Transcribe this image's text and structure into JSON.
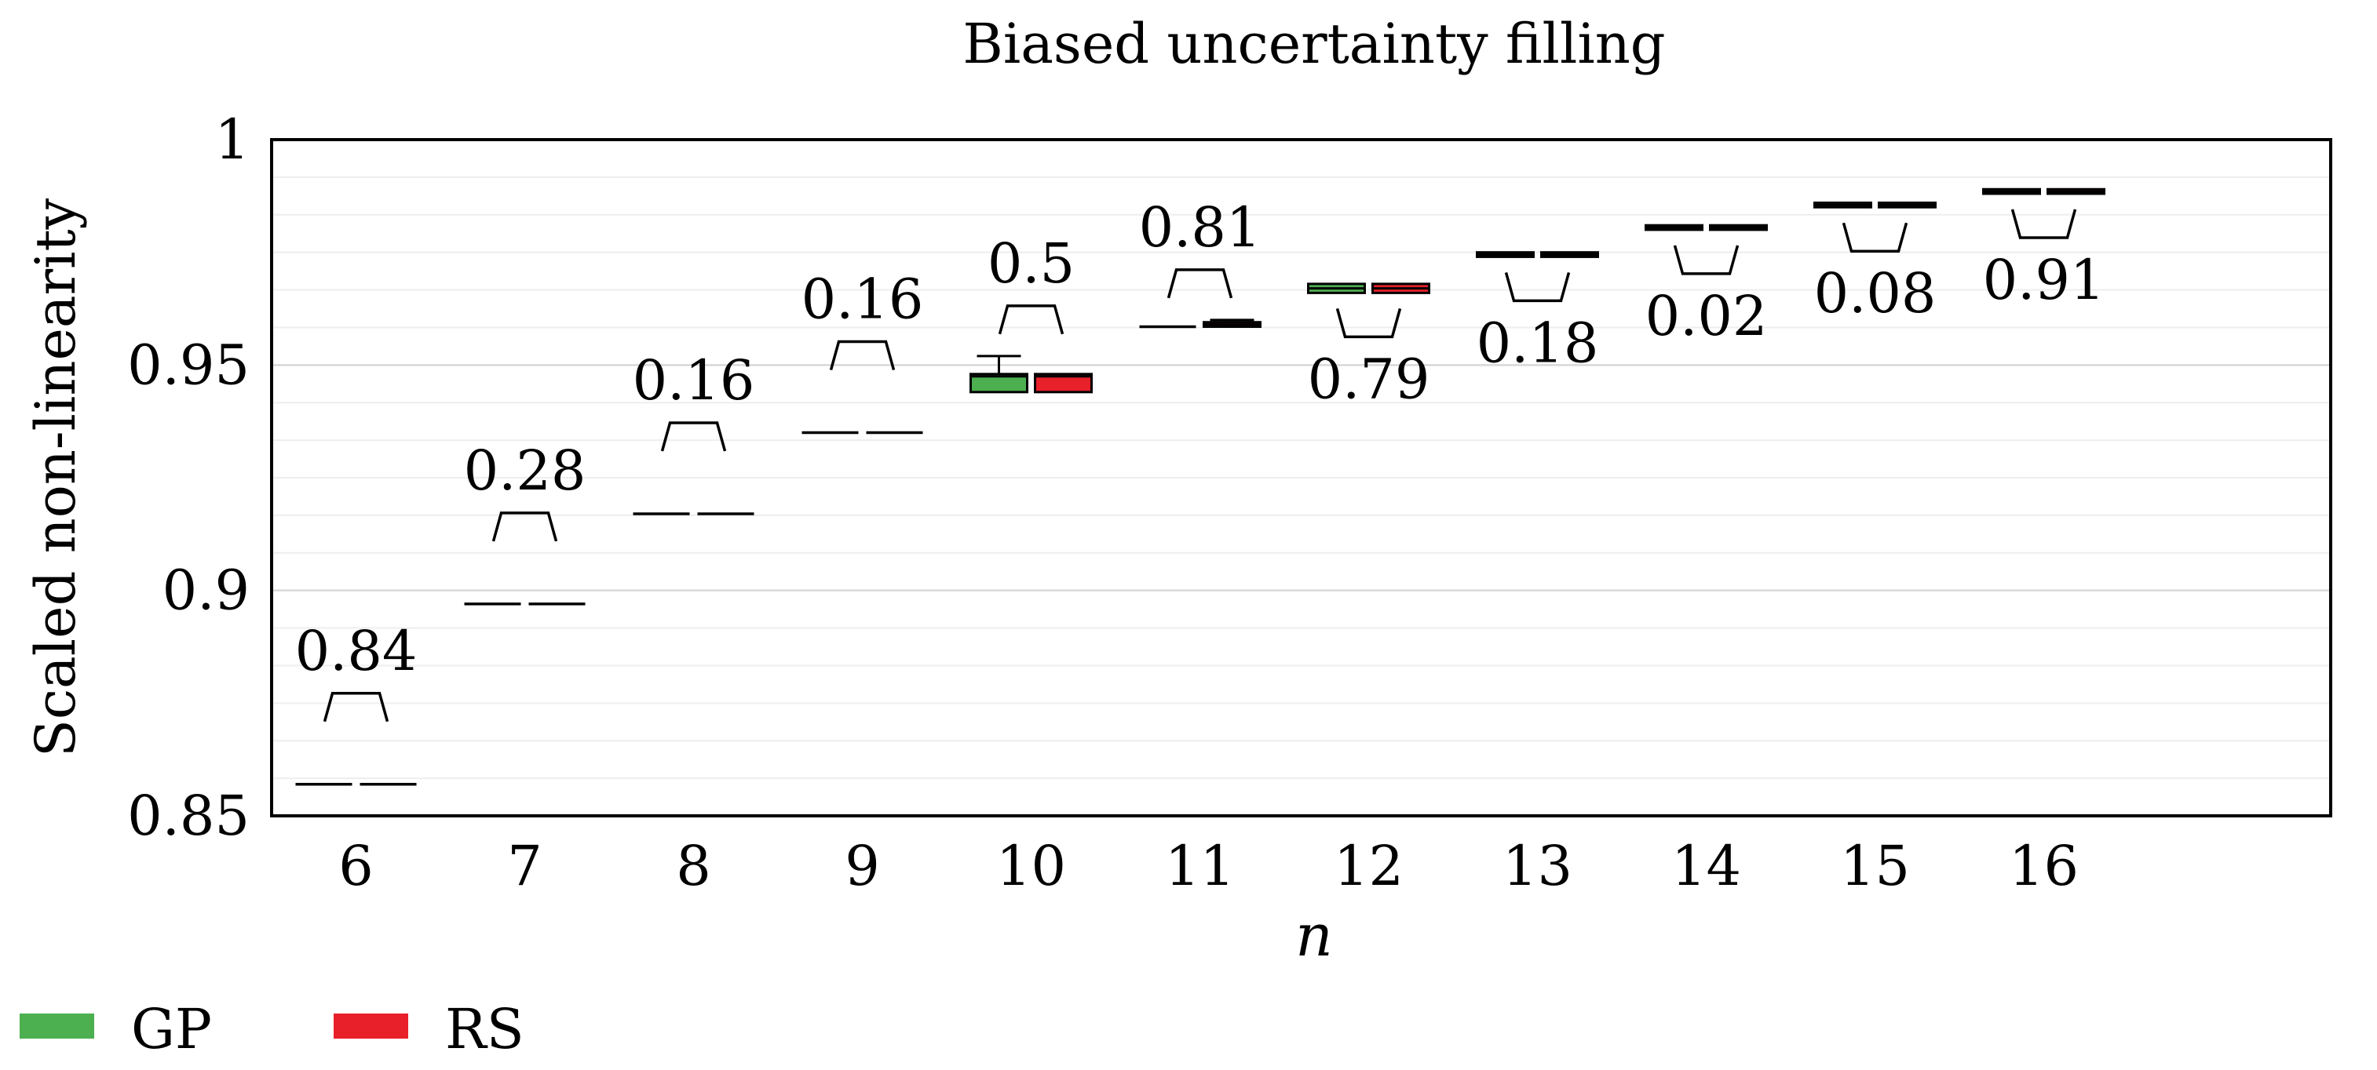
{
  "chart_data": {
    "type": "boxplot",
    "title": "Biased uncertainty filling",
    "xlabel": "n",
    "ylabel": "Scaled non-linearity",
    "ylim": [
      0.85,
      1.0
    ],
    "yticks": [
      0.85,
      0.9,
      0.95,
      1.0
    ],
    "ytick_labels": [
      "0.85",
      "0.9",
      "0.95",
      "1"
    ],
    "categories": [
      "6",
      "7",
      "8",
      "9",
      "10",
      "11",
      "12",
      "13",
      "14",
      "15",
      "16"
    ],
    "series": [
      {
        "name": "GP",
        "color": "#4CAF50",
        "boxes": [
          {
            "n": "6",
            "min": 0.857,
            "q1": 0.857,
            "median": 0.857,
            "q3": 0.857,
            "max": 0.857
          },
          {
            "n": "7",
            "min": 0.897,
            "q1": 0.897,
            "median": 0.897,
            "q3": 0.897,
            "max": 0.897
          },
          {
            "n": "8",
            "min": 0.917,
            "q1": 0.917,
            "median": 0.917,
            "q3": 0.917,
            "max": 0.917
          },
          {
            "n": "9",
            "min": 0.935,
            "q1": 0.935,
            "median": 0.935,
            "q3": 0.935,
            "max": 0.935
          },
          {
            "n": "10",
            "min": 0.944,
            "q1": 0.944,
            "median": 0.9475,
            "q3": 0.948,
            "max": 0.952
          },
          {
            "n": "11",
            "min": 0.9585,
            "q1": 0.9585,
            "median": 0.9585,
            "q3": 0.9585,
            "max": 0.9585
          },
          {
            "n": "12",
            "min": 0.966,
            "q1": 0.966,
            "median": 0.967,
            "q3": 0.968,
            "max": 0.968
          },
          {
            "n": "13",
            "min": 0.974,
            "q1": 0.974,
            "median": 0.9745,
            "q3": 0.975,
            "max": 0.975
          },
          {
            "n": "14",
            "min": 0.98,
            "q1": 0.98,
            "median": 0.9805,
            "q3": 0.981,
            "max": 0.981
          },
          {
            "n": "15",
            "min": 0.985,
            "q1": 0.985,
            "median": 0.9855,
            "q3": 0.986,
            "max": 0.986
          },
          {
            "n": "16",
            "min": 0.988,
            "q1": 0.988,
            "median": 0.9885,
            "q3": 0.989,
            "max": 0.989
          }
        ]
      },
      {
        "name": "RS",
        "color": "#E8202A",
        "boxes": [
          {
            "n": "6",
            "min": 0.857,
            "q1": 0.857,
            "median": 0.857,
            "q3": 0.857,
            "max": 0.857
          },
          {
            "n": "7",
            "min": 0.897,
            "q1": 0.897,
            "median": 0.897,
            "q3": 0.897,
            "max": 0.897
          },
          {
            "n": "8",
            "min": 0.917,
            "q1": 0.917,
            "median": 0.917,
            "q3": 0.917,
            "max": 0.917
          },
          {
            "n": "9",
            "min": 0.935,
            "q1": 0.935,
            "median": 0.935,
            "q3": 0.935,
            "max": 0.935
          },
          {
            "n": "10",
            "min": 0.944,
            "q1": 0.944,
            "median": 0.9475,
            "q3": 0.948,
            "max": 0.948
          },
          {
            "n": "11",
            "min": 0.9585,
            "q1": 0.9585,
            "median": 0.959,
            "q3": 0.9595,
            "max": 0.96
          },
          {
            "n": "12",
            "min": 0.966,
            "q1": 0.966,
            "median": 0.967,
            "q3": 0.968,
            "max": 0.968
          },
          {
            "n": "13",
            "min": 0.974,
            "q1": 0.974,
            "median": 0.9745,
            "q3": 0.975,
            "max": 0.975
          },
          {
            "n": "14",
            "min": 0.98,
            "q1": 0.98,
            "median": 0.9805,
            "q3": 0.981,
            "max": 0.981
          },
          {
            "n": "15",
            "min": 0.985,
            "q1": 0.985,
            "median": 0.9855,
            "q3": 0.986,
            "max": 0.986
          },
          {
            "n": "16",
            "min": 0.988,
            "q1": 0.988,
            "median": 0.9885,
            "q3": 0.989,
            "max": 0.989
          }
        ]
      }
    ],
    "p_values": [
      {
        "n": "6",
        "label": "0.84",
        "bracket": "above"
      },
      {
        "n": "7",
        "label": "0.28",
        "bracket": "above"
      },
      {
        "n": "8",
        "label": "0.16",
        "bracket": "above"
      },
      {
        "n": "9",
        "label": "0.16",
        "bracket": "above"
      },
      {
        "n": "10",
        "label": "0.5",
        "bracket": "above"
      },
      {
        "n": "11",
        "label": "0.81",
        "bracket": "above"
      },
      {
        "n": "12",
        "label": "0.79",
        "bracket": "below"
      },
      {
        "n": "13",
        "label": "0.18",
        "bracket": "below"
      },
      {
        "n": "14",
        "label": "0.02",
        "bracket": "below"
      },
      {
        "n": "15",
        "label": "0.08",
        "bracket": "below"
      },
      {
        "n": "16",
        "label": "0.91",
        "bracket": "below"
      }
    ],
    "legend": [
      {
        "name": "GP",
        "color": "#4CAF50"
      },
      {
        "name": "RS",
        "color": "#E8202A"
      }
    ],
    "legend_position": "bottom-left",
    "grid": true
  }
}
